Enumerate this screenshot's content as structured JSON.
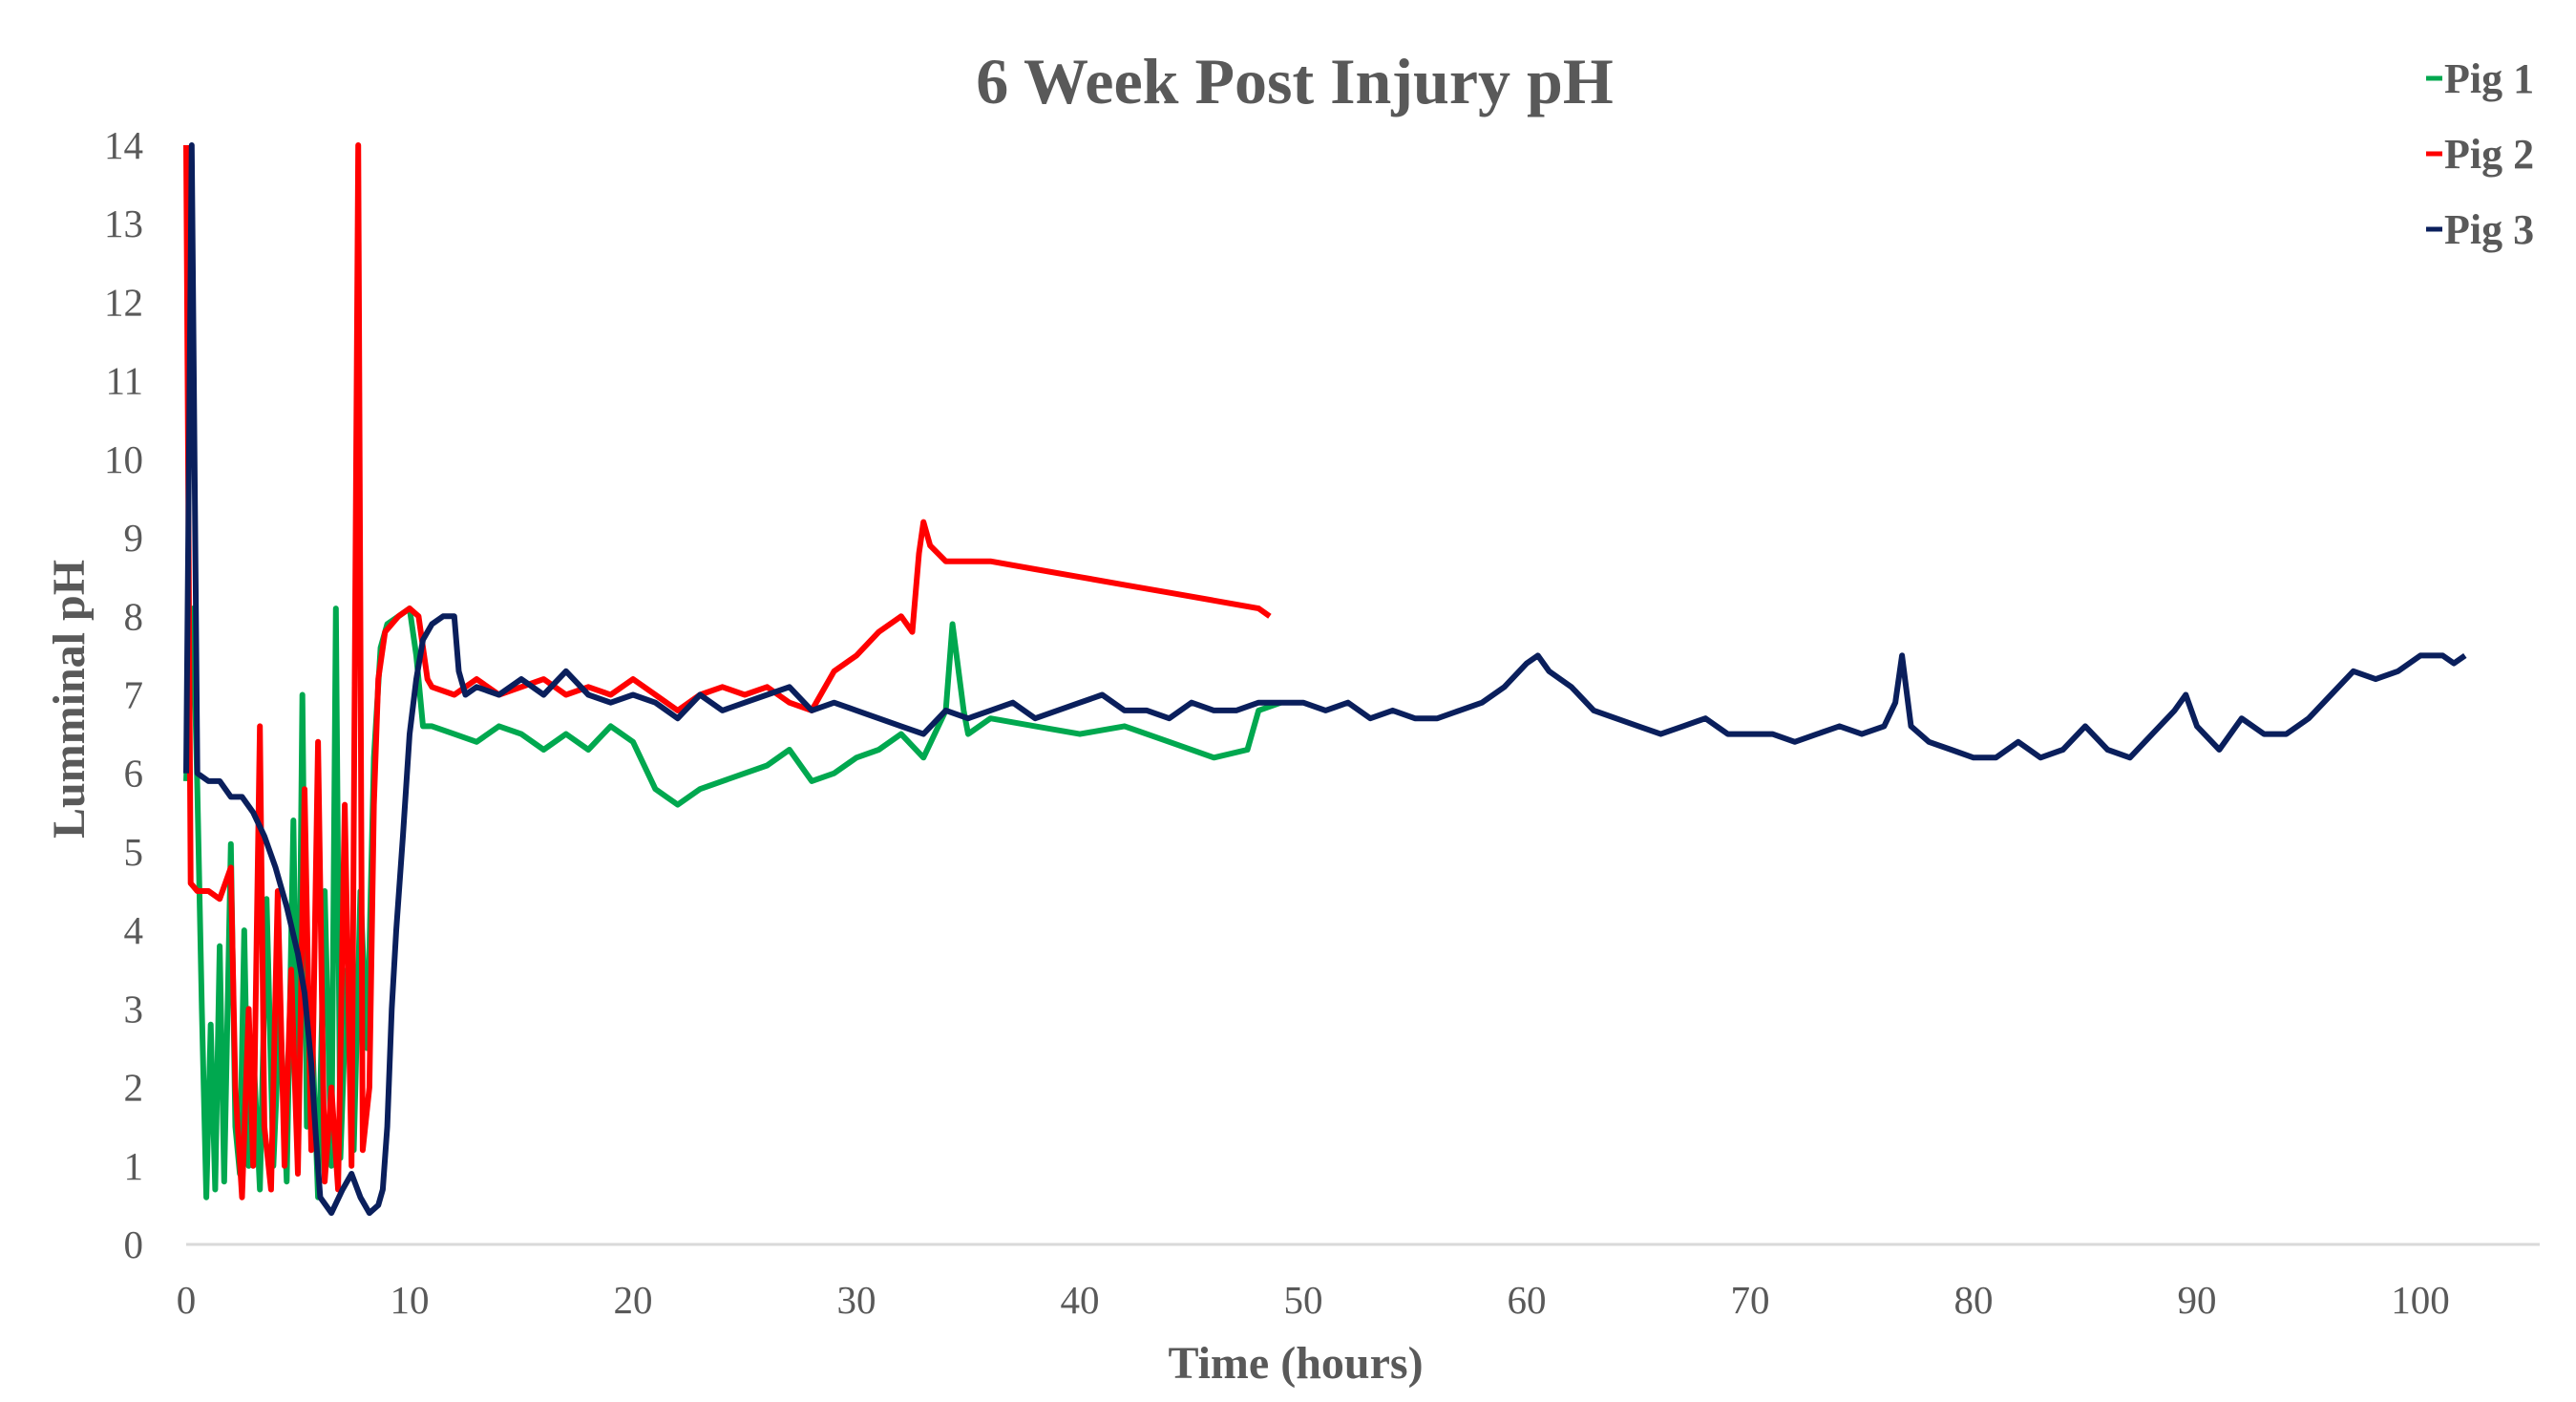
{
  "chart_data": {
    "type": "line",
    "title": "6 Week Post Injury pH",
    "xlabel": "Time (hours)",
    "ylabel": "Lumminal pH",
    "xlim": [
      0,
      105
    ],
    "ylim": [
      0,
      14
    ],
    "x_ticks": [
      "0",
      "10",
      "20",
      "30",
      "40",
      "50",
      "60",
      "70",
      "80",
      "90",
      "100"
    ],
    "y_ticks": [
      "0",
      "1",
      "2",
      "3",
      "4",
      "5",
      "6",
      "7",
      "8",
      "9",
      "10",
      "11",
      "12",
      "13",
      "14"
    ],
    "grid": false,
    "legend_position": "top-right",
    "series": [
      {
        "name": "Pig 1",
        "color": "#00a84f",
        "points": [
          [
            0,
            5.9
          ],
          [
            0.3,
            8.1
          ],
          [
            0.5,
            5.8
          ],
          [
            0.7,
            3.0
          ],
          [
            0.9,
            0.6
          ],
          [
            1.1,
            2.8
          ],
          [
            1.3,
            0.7
          ],
          [
            1.5,
            3.8
          ],
          [
            1.7,
            0.8
          ],
          [
            2.0,
            5.1
          ],
          [
            2.2,
            1.5
          ],
          [
            2.4,
            0.9
          ],
          [
            2.6,
            4.0
          ],
          [
            2.8,
            1.0
          ],
          [
            3.0,
            2.5
          ],
          [
            3.3,
            0.7
          ],
          [
            3.6,
            4.4
          ],
          [
            3.9,
            1.0
          ],
          [
            4.2,
            3.0
          ],
          [
            4.5,
            0.8
          ],
          [
            4.8,
            5.4
          ],
          [
            5.0,
            1.2
          ],
          [
            5.2,
            7.0
          ],
          [
            5.4,
            1.5
          ],
          [
            5.6,
            3.0
          ],
          [
            5.9,
            0.6
          ],
          [
            6.2,
            4.5
          ],
          [
            6.5,
            1.0
          ],
          [
            6.7,
            8.1
          ],
          [
            6.9,
            1.1
          ],
          [
            7.2,
            3.5
          ],
          [
            7.5,
            1.2
          ],
          [
            7.8,
            4.5
          ],
          [
            8.1,
            2.5
          ],
          [
            8.4,
            6.2
          ],
          [
            8.7,
            7.6
          ],
          [
            9.0,
            7.9
          ],
          [
            9.5,
            8.0
          ],
          [
            10.0,
            8.1
          ],
          [
            10.3,
            7.5
          ],
          [
            10.6,
            6.6
          ],
          [
            11,
            6.6
          ],
          [
            12,
            6.5
          ],
          [
            13,
            6.4
          ],
          [
            14,
            6.6
          ],
          [
            15,
            6.5
          ],
          [
            16,
            6.3
          ],
          [
            17,
            6.5
          ],
          [
            18,
            6.3
          ],
          [
            19,
            6.6
          ],
          [
            20,
            6.4
          ],
          [
            21,
            5.8
          ],
          [
            21.5,
            5.7
          ],
          [
            22,
            5.6
          ],
          [
            23,
            5.8
          ],
          [
            24,
            5.9
          ],
          [
            25,
            6.0
          ],
          [
            26,
            6.1
          ],
          [
            27,
            6.3
          ],
          [
            28,
            5.9
          ],
          [
            29,
            6.0
          ],
          [
            30,
            6.2
          ],
          [
            31,
            6.3
          ],
          [
            32,
            6.5
          ],
          [
            33,
            6.2
          ],
          [
            34,
            6.8
          ],
          [
            34.3,
            7.9
          ],
          [
            34.8,
            6.8
          ],
          [
            35,
            6.5
          ],
          [
            36,
            6.7
          ],
          [
            38,
            6.6
          ],
          [
            40,
            6.5
          ],
          [
            42,
            6.6
          ],
          [
            44,
            6.4
          ],
          [
            46,
            6.2
          ],
          [
            47.5,
            6.3
          ],
          [
            48,
            6.8
          ],
          [
            49,
            6.9
          ]
        ]
      },
      {
        "name": "Pig 2",
        "color": "#ff0000",
        "points": [
          [
            0,
            14
          ],
          [
            0.2,
            4.6
          ],
          [
            0.5,
            4.5
          ],
          [
            1.0,
            4.5
          ],
          [
            1.5,
            4.4
          ],
          [
            2.0,
            4.8
          ],
          [
            2.2,
            2.0
          ],
          [
            2.5,
            0.6
          ],
          [
            2.8,
            3.0
          ],
          [
            3.0,
            1.0
          ],
          [
            3.3,
            6.6
          ],
          [
            3.5,
            1.5
          ],
          [
            3.8,
            0.7
          ],
          [
            4.1,
            4.5
          ],
          [
            4.4,
            1.0
          ],
          [
            4.7,
            3.5
          ],
          [
            5.0,
            0.9
          ],
          [
            5.3,
            5.8
          ],
          [
            5.6,
            1.2
          ],
          [
            5.9,
            6.4
          ],
          [
            6.2,
            0.8
          ],
          [
            6.5,
            2.0
          ],
          [
            6.8,
            0.7
          ],
          [
            7.1,
            5.6
          ],
          [
            7.4,
            1.0
          ],
          [
            7.7,
            14
          ],
          [
            7.9,
            1.2
          ],
          [
            8.2,
            2.0
          ],
          [
            8.4,
            5.6
          ],
          [
            8.6,
            7.2
          ],
          [
            8.9,
            7.8
          ],
          [
            9.5,
            8.0
          ],
          [
            10.0,
            8.1
          ],
          [
            10.4,
            8.0
          ],
          [
            10.8,
            7.2
          ],
          [
            11,
            7.1
          ],
          [
            12,
            7.0
          ],
          [
            13,
            7.2
          ],
          [
            14,
            7.0
          ],
          [
            15,
            7.1
          ],
          [
            16,
            7.2
          ],
          [
            17,
            7.0
          ],
          [
            18,
            7.1
          ],
          [
            19,
            7.0
          ],
          [
            20,
            7.2
          ],
          [
            21,
            7.0
          ],
          [
            22,
            6.8
          ],
          [
            23,
            7.0
          ],
          [
            24,
            7.1
          ],
          [
            25,
            7.0
          ],
          [
            26,
            7.1
          ],
          [
            27,
            6.9
          ],
          [
            28,
            6.8
          ],
          [
            29,
            7.3
          ],
          [
            30,
            7.5
          ],
          [
            31,
            7.8
          ],
          [
            32,
            8.0
          ],
          [
            32.5,
            7.8
          ],
          [
            32.8,
            8.8
          ],
          [
            33.0,
            9.2
          ],
          [
            33.3,
            8.9
          ],
          [
            34,
            8.7
          ],
          [
            35,
            8.7
          ],
          [
            36,
            8.7
          ],
          [
            38,
            8.6
          ],
          [
            40,
            8.5
          ],
          [
            42,
            8.4
          ],
          [
            44,
            8.3
          ],
          [
            46,
            8.2
          ],
          [
            48,
            8.1
          ],
          [
            48.5,
            8.0
          ]
        ]
      },
      {
        "name": "Pig 3",
        "color": "#0a1f5c",
        "points": [
          [
            0,
            6.0
          ],
          [
            0.25,
            14
          ],
          [
            0.5,
            6.0
          ],
          [
            1,
            5.9
          ],
          [
            1.5,
            5.9
          ],
          [
            2,
            5.7
          ],
          [
            2.5,
            5.7
          ],
          [
            3,
            5.5
          ],
          [
            3.5,
            5.2
          ],
          [
            4,
            4.8
          ],
          [
            4.5,
            4.3
          ],
          [
            5,
            3.7
          ],
          [
            5.3,
            3.2
          ],
          [
            5.6,
            2.3
          ],
          [
            5.8,
            1.4
          ],
          [
            6.0,
            0.6
          ],
          [
            6.5,
            0.4
          ],
          [
            7.0,
            0.7
          ],
          [
            7.4,
            0.9
          ],
          [
            7.8,
            0.6
          ],
          [
            8.2,
            0.4
          ],
          [
            8.6,
            0.5
          ],
          [
            8.8,
            0.7
          ],
          [
            9.0,
            1.5
          ],
          [
            9.2,
            3.0
          ],
          [
            9.4,
            4.0
          ],
          [
            9.7,
            5.2
          ],
          [
            10.0,
            6.5
          ],
          [
            10.3,
            7.2
          ],
          [
            10.6,
            7.7
          ],
          [
            11,
            7.9
          ],
          [
            11.5,
            8.0
          ],
          [
            12,
            8.0
          ],
          [
            12.2,
            7.3
          ],
          [
            12.5,
            7.0
          ],
          [
            13,
            7.1
          ],
          [
            14,
            7.0
          ],
          [
            15,
            7.2
          ],
          [
            16,
            7.0
          ],
          [
            17,
            7.3
          ],
          [
            18,
            7.0
          ],
          [
            19,
            6.9
          ],
          [
            20,
            7.0
          ],
          [
            21,
            6.9
          ],
          [
            22,
            6.7
          ],
          [
            23,
            7.0
          ],
          [
            24,
            6.8
          ],
          [
            25,
            6.9
          ],
          [
            26,
            7.0
          ],
          [
            27,
            7.1
          ],
          [
            28,
            6.8
          ],
          [
            29,
            6.9
          ],
          [
            30,
            6.8
          ],
          [
            31,
            6.7
          ],
          [
            32,
            6.6
          ],
          [
            33,
            6.5
          ],
          [
            34,
            6.8
          ],
          [
            35,
            6.7
          ],
          [
            36,
            6.8
          ],
          [
            37,
            6.9
          ],
          [
            38,
            6.7
          ],
          [
            39,
            6.8
          ],
          [
            40,
            6.9
          ],
          [
            41,
            7.0
          ],
          [
            42,
            6.8
          ],
          [
            43,
            6.8
          ],
          [
            44,
            6.7
          ],
          [
            45,
            6.9
          ],
          [
            46,
            6.8
          ],
          [
            47,
            6.8
          ],
          [
            48,
            6.9
          ],
          [
            49,
            6.9
          ],
          [
            50,
            6.9
          ],
          [
            51,
            6.8
          ],
          [
            52,
            6.9
          ],
          [
            53,
            6.7
          ],
          [
            54,
            6.8
          ],
          [
            55,
            6.7
          ],
          [
            56,
            6.7
          ],
          [
            57,
            6.8
          ],
          [
            58,
            6.9
          ],
          [
            59,
            7.1
          ],
          [
            60,
            7.4
          ],
          [
            60.5,
            7.5
          ],
          [
            61,
            7.3
          ],
          [
            62,
            7.1
          ],
          [
            63,
            6.8
          ],
          [
            64,
            6.7
          ],
          [
            65,
            6.6
          ],
          [
            66,
            6.5
          ],
          [
            67,
            6.6
          ],
          [
            68,
            6.7
          ],
          [
            69,
            6.5
          ],
          [
            70,
            6.5
          ],
          [
            71,
            6.5
          ],
          [
            72,
            6.4
          ],
          [
            73,
            6.5
          ],
          [
            74,
            6.6
          ],
          [
            75,
            6.5
          ],
          [
            76,
            6.6
          ],
          [
            76.5,
            6.9
          ],
          [
            76.8,
            7.5
          ],
          [
            77.2,
            6.6
          ],
          [
            78,
            6.4
          ],
          [
            79,
            6.3
          ],
          [
            80,
            6.2
          ],
          [
            81,
            6.2
          ],
          [
            82,
            6.4
          ],
          [
            83,
            6.2
          ],
          [
            84,
            6.3
          ],
          [
            85,
            6.6
          ],
          [
            86,
            6.3
          ],
          [
            87,
            6.2
          ],
          [
            88,
            6.5
          ],
          [
            89,
            6.8
          ],
          [
            89.5,
            7.0
          ],
          [
            90,
            6.6
          ],
          [
            91,
            6.3
          ],
          [
            92,
            6.7
          ],
          [
            93,
            6.5
          ],
          [
            94,
            6.5
          ],
          [
            95,
            6.7
          ],
          [
            96,
            7.0
          ],
          [
            97,
            7.3
          ],
          [
            98,
            7.2
          ],
          [
            99,
            7.3
          ],
          [
            100,
            7.5
          ],
          [
            101,
            7.5
          ],
          [
            101.5,
            7.4
          ],
          [
            102,
            7.5
          ]
        ]
      }
    ]
  }
}
